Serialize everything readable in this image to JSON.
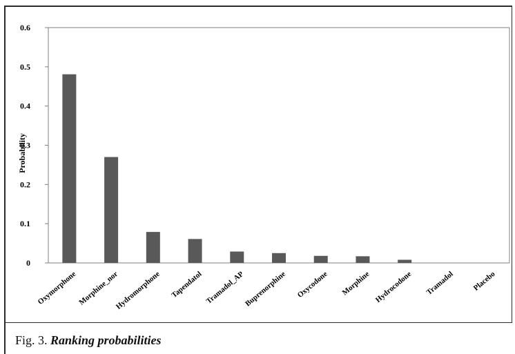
{
  "caption": {
    "label": "Fig. 3.",
    "text": "Ranking probabilities"
  },
  "colors": {
    "bar": "#595959",
    "axis": "#7f7f7f",
    "text": "#000000"
  },
  "chart_data": {
    "type": "bar",
    "title": "",
    "xlabel": "",
    "ylabel": "Probability",
    "ylim": [
      0,
      0.6
    ],
    "yticks": [
      "0",
      "0.1",
      "0.2",
      "0.3",
      "0.4",
      "0.5",
      "0.6"
    ],
    "grid": false,
    "categories": [
      "Oxymorphone",
      "Morphine_nor",
      "Hydromorphone",
      "Tapendatol",
      "Tramadol_AP",
      "Buprenorphine",
      "Oxycodone",
      "Morphine",
      "Hydrocodone",
      "Tramadol",
      "Placebo"
    ],
    "values": [
      0.481,
      0.27,
      0.079,
      0.061,
      0.029,
      0.025,
      0.018,
      0.017,
      0.008,
      0.0,
      0.0
    ]
  }
}
